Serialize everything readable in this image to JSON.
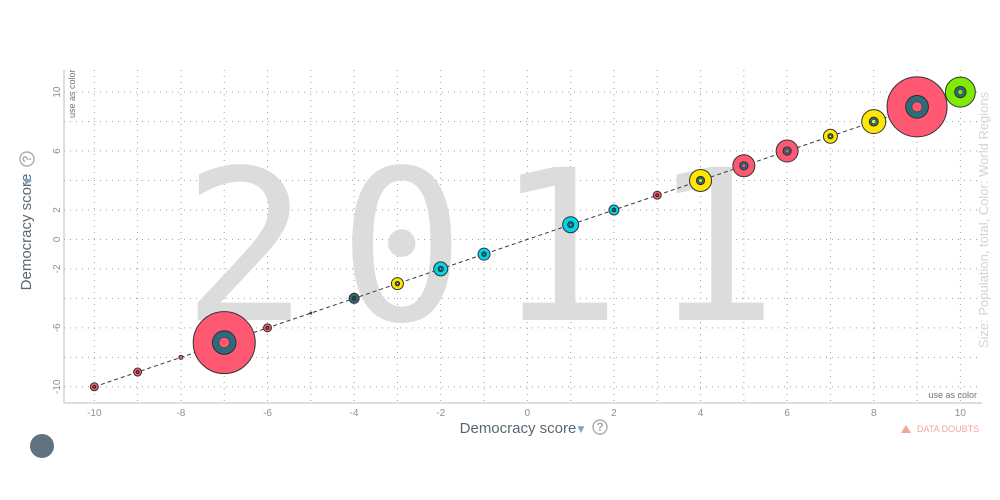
{
  "x_axis": {
    "label": "Democracy score",
    "label_arrow": "▼",
    "help": "?",
    "note": "use as color"
  },
  "y_axis": {
    "label": "Democracy score",
    "label_arrow": "▼",
    "help": "?",
    "note": "use as color"
  },
  "year": "2011",
  "size_color_label": "Size: Population, total, Color: World Regions",
  "data_doubts": "DATA DOUBTS",
  "colors": {
    "asia": "#ff5872",
    "americas": "#7feb00",
    "europe": "#ffe700",
    "africa": "#00d5e9",
    "other": "#2c6b7a"
  },
  "chart_data": {
    "type": "scatter",
    "title": "2011",
    "xlabel": "Democracy score",
    "ylabel": "Democracy score",
    "xlim": [
      -10.7,
      10.5
    ],
    "ylim": [
      -11.1,
      11.5
    ],
    "x_ticks": [
      -10,
      -8,
      -6,
      -4,
      -2,
      0,
      2,
      4,
      6,
      8,
      10
    ],
    "y_ticks": [
      -10,
      -6,
      -2,
      0,
      2,
      6,
      10
    ],
    "trend_line": {
      "style": "dashed",
      "from": [
        -10,
        -10
      ],
      "to": [
        10,
        10
      ]
    },
    "points": [
      {
        "x": -10,
        "y": -10,
        "size": 4,
        "color": "#ff5872"
      },
      {
        "x": -9,
        "y": -9,
        "size": 4,
        "color": "#ff5872"
      },
      {
        "x": -8,
        "y": -8,
        "size": 2,
        "color": "#ff5872"
      },
      {
        "x": -7,
        "y": -7,
        "size": 31,
        "color": "#ff5872"
      },
      {
        "x": -6,
        "y": -6,
        "size": 4,
        "color": "#ff5872"
      },
      {
        "x": -5,
        "y": -5,
        "size": 1,
        "color": "#ff5872"
      },
      {
        "x": -4,
        "y": -4,
        "size": 5,
        "color": "#2c6b7a"
      },
      {
        "x": -3,
        "y": -3,
        "size": 6,
        "color": "#ffe700"
      },
      {
        "x": -2,
        "y": -2,
        "size": 7,
        "color": "#00d5e9"
      },
      {
        "x": -1,
        "y": -1,
        "size": 6,
        "color": "#00d5e9"
      },
      {
        "x": 1,
        "y": 1,
        "size": 8,
        "color": "#00d5e9"
      },
      {
        "x": 2,
        "y": 2,
        "size": 5,
        "color": "#00d5e9"
      },
      {
        "x": 3,
        "y": 3,
        "size": 4,
        "color": "#ff5872"
      },
      {
        "x": 4,
        "y": 4,
        "size": 11,
        "color": "#ffe700"
      },
      {
        "x": 5,
        "y": 5,
        "size": 11,
        "color": "#ff5872"
      },
      {
        "x": 6,
        "y": 6,
        "size": 11,
        "color": "#ff5872"
      },
      {
        "x": 7,
        "y": 7,
        "size": 7,
        "color": "#ffe700"
      },
      {
        "x": 8,
        "y": 8,
        "size": 12,
        "color": "#ffe700"
      },
      {
        "x": 9,
        "y": 9,
        "size": 30,
        "color": "#ff5872"
      },
      {
        "x": 10,
        "y": 10,
        "size": 15,
        "color": "#7feb00"
      }
    ]
  }
}
